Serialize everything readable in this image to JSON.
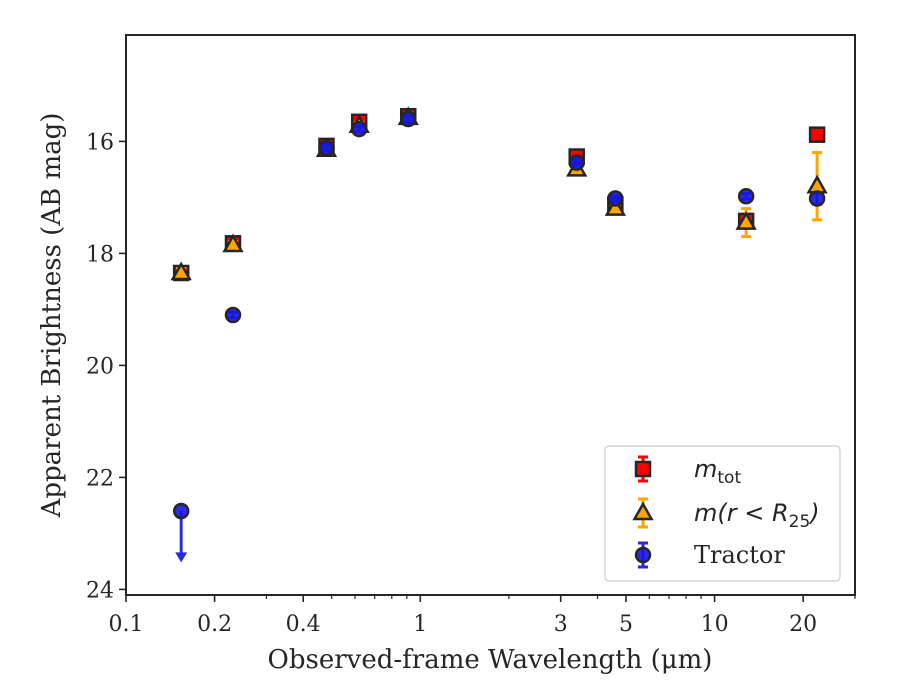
{
  "chart_data": {
    "type": "scatter",
    "title": "",
    "xlabel": "Observed-frame Wavelength (μm)",
    "ylabel": "Apparent Brightness (AB mag)",
    "xscale": "log",
    "xlim": [
      0.1,
      30
    ],
    "ylim": [
      24.1,
      14.1
    ],
    "y_inverted": true,
    "grid": false,
    "legend_position": "lower-right",
    "xticks": [
      {
        "value": 0.1,
        "label": "0.1"
      },
      {
        "value": 0.2,
        "label": "0.2"
      },
      {
        "value": 0.4,
        "label": "0.4"
      },
      {
        "value": 1,
        "label": "1"
      },
      {
        "value": 3,
        "label": "3"
      },
      {
        "value": 5,
        "label": "5"
      },
      {
        "value": 10,
        "label": "10"
      },
      {
        "value": 20,
        "label": "20"
      }
    ],
    "yticks": [
      {
        "value": 16,
        "label": "16"
      },
      {
        "value": 18,
        "label": "18"
      },
      {
        "value": 20,
        "label": "20"
      },
      {
        "value": 22,
        "label": "22"
      },
      {
        "value": 24,
        "label": "24"
      }
    ],
    "series": [
      {
        "name": "m_tot",
        "legend_text": "m",
        "legend_sub": "tot",
        "marker": "square",
        "color": "#ff0000",
        "edge": "#262626",
        "errcolor": "#ff0000",
        "points": [
          {
            "x": 0.154,
            "y": 18.35,
            "err": 0.08
          },
          {
            "x": 0.231,
            "y": 17.82,
            "err": 0.06
          },
          {
            "x": 0.48,
            "y": 16.08,
            "err": 0.1
          },
          {
            "x": 0.62,
            "y": 15.65,
            "err": 0.1
          },
          {
            "x": 0.91,
            "y": 15.55,
            "err": 0.08
          },
          {
            "x": 3.4,
            "y": 16.27,
            "err": 0.08
          },
          {
            "x": 4.6,
            "y": 17.13,
            "err": 0.06
          },
          {
            "x": 12.8,
            "y": 17.42,
            "err": 0.12
          },
          {
            "x": 22.3,
            "y": 15.88,
            "err": 0.06
          }
        ]
      },
      {
        "name": "m(r < R25)",
        "legend_text": "m(r < R",
        "legend_sub": "25",
        "legend_tail": ")",
        "marker": "triangle",
        "color": "#ffa500",
        "edge": "#262626",
        "errcolor": "#ffa500",
        "points": [
          {
            "x": 0.154,
            "y": 18.35,
            "err": 0.08
          },
          {
            "x": 0.231,
            "y": 17.85,
            "err": 0.06
          },
          {
            "x": 0.48,
            "y": 16.15,
            "err": 0.06
          },
          {
            "x": 0.62,
            "y": 15.72,
            "err": 0.06
          },
          {
            "x": 0.91,
            "y": 15.58,
            "err": 0.05
          },
          {
            "x": 3.4,
            "y": 16.5,
            "err": 0.07
          },
          {
            "x": 4.6,
            "y": 17.2,
            "err": 0.06
          },
          {
            "x": 12.8,
            "y": 17.45,
            "err": 0.25
          },
          {
            "x": 22.3,
            "y": 16.8,
            "err": 0.6
          }
        ]
      },
      {
        "name": "Tractor",
        "legend_text": "Tractor",
        "marker": "circle",
        "color": "#1515e6",
        "edge": "#262626",
        "errcolor": "#2a2ad8",
        "points": [
          {
            "x": 0.154,
            "y": 22.6,
            "err": 0,
            "upper_limit": true
          },
          {
            "x": 0.231,
            "y": 19.1,
            "err": 0.05
          },
          {
            "x": 0.48,
            "y": 16.12,
            "err": 0.05
          },
          {
            "x": 0.62,
            "y": 15.78,
            "err": 0.05
          },
          {
            "x": 0.91,
            "y": 15.6,
            "err": 0.05
          },
          {
            "x": 3.4,
            "y": 16.38,
            "err": 0.05
          },
          {
            "x": 4.6,
            "y": 17.02,
            "err": 0.05
          },
          {
            "x": 12.8,
            "y": 16.98,
            "err": 0.05
          },
          {
            "x": 22.3,
            "y": 17.02,
            "err": 0.1
          }
        ]
      }
    ]
  }
}
